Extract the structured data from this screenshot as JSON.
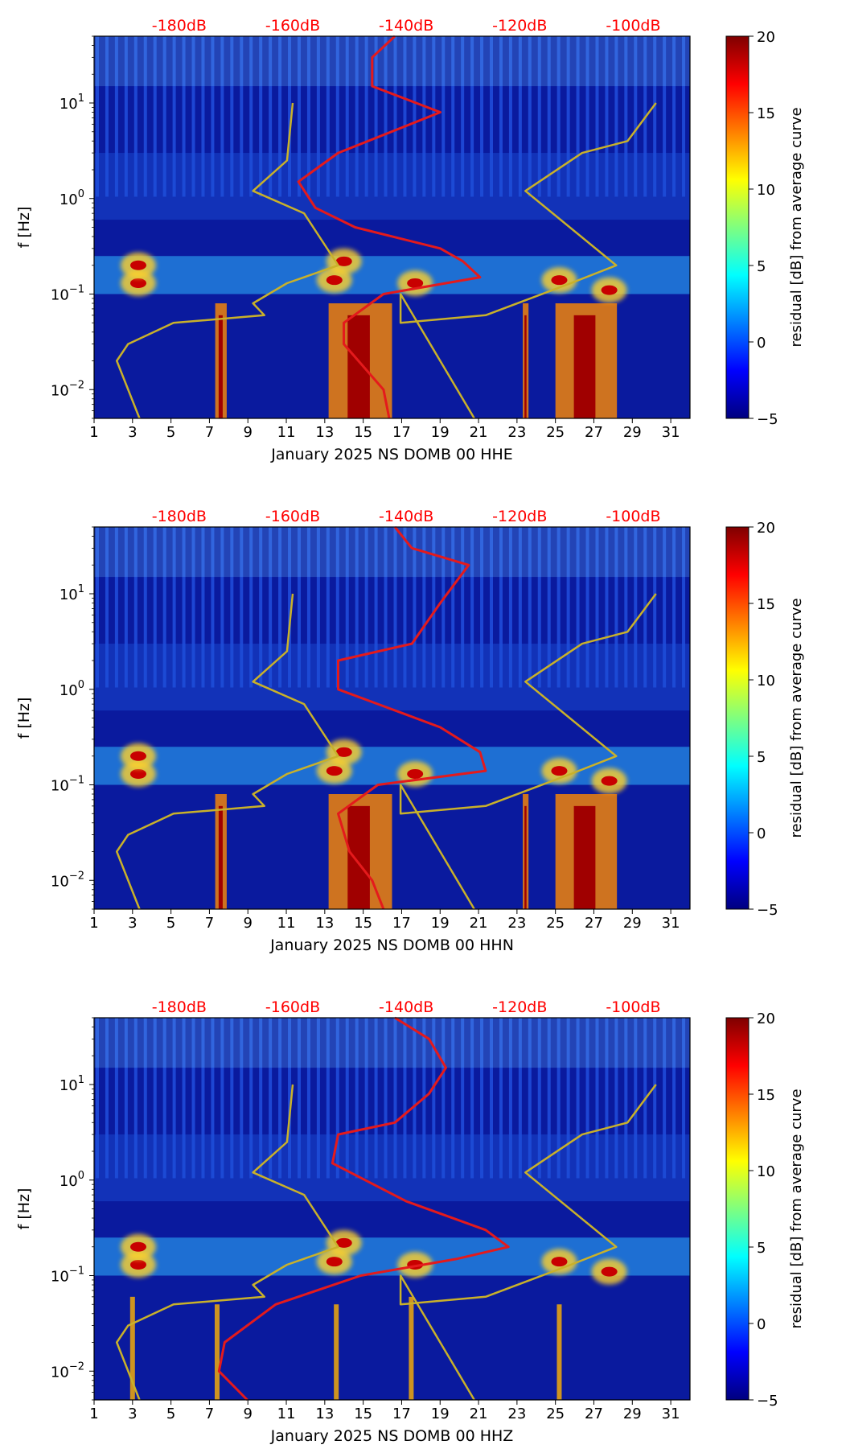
{
  "chart_data": [
    {
      "type": "heatmap",
      "title": "",
      "xlabel": "January 2025 NS DOMB 00 HHE",
      "ylabel": "f [Hz]",
      "x_ticks": [
        "1",
        "3",
        "5",
        "7",
        "9",
        "11",
        "13",
        "15",
        "17",
        "19",
        "21",
        "23",
        "25",
        "27",
        "29",
        "31"
      ],
      "xlim": [
        1,
        32
      ],
      "ylim": [
        0.005,
        50
      ],
      "y_ticks": [
        {
          "base": "10",
          "exp": "−2",
          "value": 0.01
        },
        {
          "base": "10",
          "exp": "−1",
          "value": 0.1
        },
        {
          "base": "10",
          "exp": "0",
          "value": 1
        },
        {
          "base": "10",
          "exp": "1",
          "value": 10
        }
      ],
      "top_labels": [
        "-180dB",
        "-160dB",
        "-140dB",
        "-120dB",
        "-100dB"
      ],
      "colorbar": {
        "label": "residual [dB] from average curve",
        "range": [
          -5,
          20
        ],
        "ticks": [
          "−5",
          "0",
          "5",
          "10",
          "15",
          "20"
        ],
        "tick_values": [
          -5,
          0,
          5,
          10,
          15,
          20
        ]
      },
      "series": [
        {
          "name": "PSD curve (red)",
          "color": "#e41a1c",
          "x_db": [
            -142,
            -146,
            -146,
            -134,
            -152,
            -159,
            -156,
            -149,
            -134,
            -130,
            -127,
            -144,
            -151,
            -151,
            -144,
            -143
          ],
          "f": [
            50,
            30,
            15,
            8,
            3,
            1.5,
            0.8,
            0.5,
            0.3,
            0.22,
            0.15,
            0.1,
            0.05,
            0.03,
            0.01,
            0.005
          ]
        },
        {
          "name": "noise model (gold)",
          "color": "#c9b12a",
          "x_db": [
            -160,
            -161,
            -167,
            -158,
            -152,
            -161,
            -167,
            -165,
            -181,
            -189,
            -191,
            -187
          ],
          "f": [
            10,
            2.5,
            1.2,
            0.7,
            0.2,
            0.13,
            0.08,
            0.06,
            0.05,
            0.03,
            0.02,
            0.005
          ]
        },
        {
          "name": "noise model right (gold)",
          "color": "#c9b12a",
          "x_db": [
            -96,
            -101,
            -109,
            -119,
            -103,
            -111,
            -126,
            -141,
            -141,
            -128
          ],
          "f": [
            10,
            4,
            3,
            1.2,
            0.2,
            0.13,
            0.06,
            0.05,
            0.1,
            0.005
          ]
        }
      ]
    },
    {
      "type": "heatmap",
      "title": "",
      "xlabel": "January 2025 NS DOMB 00 HHN",
      "ylabel": "f [Hz]",
      "x_ticks": [
        "1",
        "3",
        "5",
        "7",
        "9",
        "11",
        "13",
        "15",
        "17",
        "19",
        "21",
        "23",
        "25",
        "27",
        "29",
        "31"
      ],
      "xlim": [
        1,
        32
      ],
      "ylim": [
        0.005,
        50
      ],
      "y_ticks": [
        {
          "base": "10",
          "exp": "−2",
          "value": 0.01
        },
        {
          "base": "10",
          "exp": "−1",
          "value": 0.1
        },
        {
          "base": "10",
          "exp": "0",
          "value": 1
        },
        {
          "base": "10",
          "exp": "1",
          "value": 10
        }
      ],
      "top_labels": [
        "-180dB",
        "-160dB",
        "-140dB",
        "-120dB",
        "-100dB"
      ],
      "colorbar": {
        "label": "residual [dB] from average curve",
        "range": [
          -5,
          20
        ],
        "ticks": [
          "−5",
          "0",
          "5",
          "10",
          "15",
          "20"
        ],
        "tick_values": [
          -5,
          0,
          5,
          10,
          15,
          20
        ]
      },
      "series": [
        {
          "name": "PSD curve (red)",
          "color": "#e41a1c",
          "x_db": [
            -142,
            -139,
            -129,
            -134,
            -139,
            -152,
            -152,
            -145,
            -134,
            -127,
            -126,
            -145,
            -152,
            -150,
            -146,
            -144
          ],
          "f": [
            50,
            30,
            20,
            8,
            3,
            2,
            1,
            0.7,
            0.4,
            0.22,
            0.14,
            0.1,
            0.05,
            0.02,
            0.01,
            0.005
          ]
        },
        {
          "name": "noise model (gold)",
          "color": "#c9b12a",
          "x_db": [
            -160,
            -161,
            -167,
            -158,
            -152,
            -161,
            -167,
            -165,
            -181,
            -189,
            -191,
            -187
          ],
          "f": [
            10,
            2.5,
            1.2,
            0.7,
            0.2,
            0.13,
            0.08,
            0.06,
            0.05,
            0.03,
            0.02,
            0.005
          ]
        },
        {
          "name": "noise model right (gold)",
          "color": "#c9b12a",
          "x_db": [
            -96,
            -101,
            -109,
            -119,
            -103,
            -111,
            -126,
            -141,
            -141,
            -128
          ],
          "f": [
            10,
            4,
            3,
            1.2,
            0.2,
            0.13,
            0.06,
            0.05,
            0.1,
            0.005
          ]
        }
      ]
    },
    {
      "type": "heatmap",
      "title": "",
      "xlabel": "January 2025 NS DOMB 00 HHZ",
      "ylabel": "f [Hz]",
      "x_ticks": [
        "1",
        "3",
        "5",
        "7",
        "9",
        "11",
        "13",
        "15",
        "17",
        "19",
        "21",
        "23",
        "25",
        "27",
        "29",
        "31"
      ],
      "xlim": [
        1,
        32
      ],
      "ylim": [
        0.005,
        50
      ],
      "y_ticks": [
        {
          "base": "10",
          "exp": "−2",
          "value": 0.01
        },
        {
          "base": "10",
          "exp": "−1",
          "value": 0.1
        },
        {
          "base": "10",
          "exp": "0",
          "value": 1
        },
        {
          "base": "10",
          "exp": "1",
          "value": 10
        }
      ],
      "top_labels": [
        "-180dB",
        "-160dB",
        "-140dB",
        "-120dB",
        "-100dB"
      ],
      "colorbar": {
        "label": "residual [dB] from average curve",
        "range": [
          -5,
          20
        ],
        "ticks": [
          "−5",
          "0",
          "5",
          "10",
          "15",
          "20"
        ],
        "tick_values": [
          -5,
          0,
          5,
          10,
          15,
          20
        ]
      },
      "series": [
        {
          "name": "PSD curve (red)",
          "color": "#e41a1c",
          "x_db": [
            -142,
            -136,
            -133,
            -136,
            -142,
            -152,
            -153,
            -140,
            -126,
            -122,
            -131,
            -148,
            -163,
            -172,
            -173,
            -168
          ],
          "f": [
            50,
            30,
            15,
            8,
            4,
            3,
            1.5,
            0.6,
            0.3,
            0.2,
            0.15,
            0.1,
            0.05,
            0.02,
            0.01,
            0.005
          ]
        },
        {
          "name": "noise model (gold)",
          "color": "#c9b12a",
          "x_db": [
            -160,
            -161,
            -167,
            -158,
            -152,
            -161,
            -167,
            -165,
            -181,
            -189,
            -191,
            -187
          ],
          "f": [
            10,
            2.5,
            1.2,
            0.7,
            0.2,
            0.13,
            0.08,
            0.06,
            0.05,
            0.03,
            0.02,
            0.005
          ]
        },
        {
          "name": "noise model right (gold)",
          "color": "#c9b12a",
          "x_db": [
            -96,
            -101,
            -109,
            -119,
            -103,
            -111,
            -126,
            -141,
            -141,
            -128
          ],
          "f": [
            10,
            4,
            3,
            1.2,
            0.2,
            0.13,
            0.06,
            0.05,
            0.1,
            0.005
          ]
        }
      ]
    }
  ],
  "colors": {
    "top_label": "#ff0000",
    "axis": "#000000"
  }
}
